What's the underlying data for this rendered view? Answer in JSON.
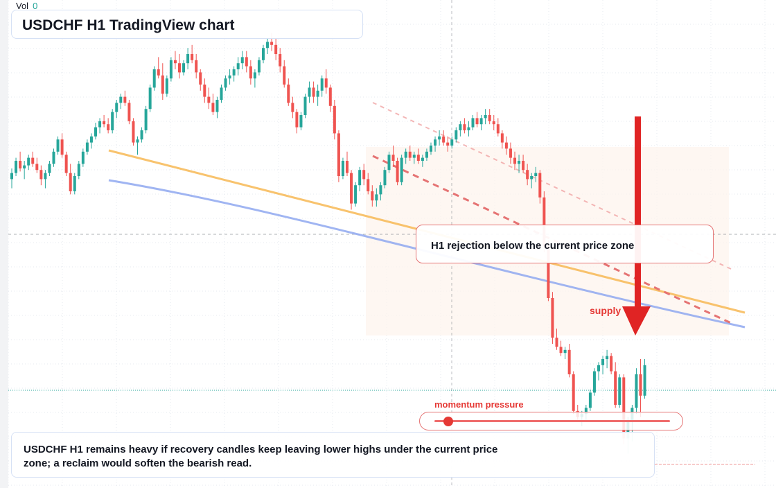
{
  "header": {
    "vol_label": "Vol",
    "vol_value": "0"
  },
  "title": "USDCHF H1 TradingView chart",
  "annotations": {
    "callout": "H1 rejection below the current price zone",
    "supply_label": "supply",
    "momentum_label": "momentum pressure",
    "momentum_level": 0.06
  },
  "note": "USDCHF H1 remains heavy if recovery candles keep leaving lower highs under the current price zone; a reclaim would soften the bearish read.",
  "colors": {
    "up": "#26a69a",
    "down": "#ef5350",
    "arrow": "#e02424",
    "ma_orange": "#f7b955",
    "ma_blue": "#8fa8f0",
    "trend_red": "#e57373",
    "grid": "#e6e9ef",
    "zone": "#fdf3ec"
  },
  "chart_data": {
    "type": "candlestick",
    "symbol": "USDCHF",
    "timeframe": "H1",
    "y_direction": "price (unlabeled axis)",
    "candles": [
      [
        0.68,
        0.75,
        0.62,
        0.72
      ],
      [
        0.72,
        0.82,
        0.7,
        0.8
      ],
      [
        0.8,
        0.86,
        0.73,
        0.75
      ],
      [
        0.75,
        0.8,
        0.68,
        0.77
      ],
      [
        0.77,
        0.84,
        0.74,
        0.82
      ],
      [
        0.82,
        0.86,
        0.76,
        0.78
      ],
      [
        0.78,
        0.82,
        0.72,
        0.74
      ],
      [
        0.74,
        0.77,
        0.64,
        0.68
      ],
      [
        0.68,
        0.74,
        0.62,
        0.72
      ],
      [
        0.72,
        0.8,
        0.7,
        0.78
      ],
      [
        0.78,
        0.88,
        0.76,
        0.86
      ],
      [
        0.86,
        0.96,
        0.84,
        0.94
      ],
      [
        0.94,
        0.98,
        0.82,
        0.84
      ],
      [
        0.84,
        0.86,
        0.7,
        0.72
      ],
      [
        0.72,
        0.78,
        0.58,
        0.6
      ],
      [
        0.6,
        0.72,
        0.58,
        0.7
      ],
      [
        0.7,
        0.8,
        0.68,
        0.78
      ],
      [
        0.78,
        0.88,
        0.76,
        0.86
      ],
      [
        0.86,
        0.94,
        0.84,
        0.92
      ],
      [
        0.92,
        0.98,
        0.88,
        0.96
      ],
      [
        0.96,
        1.05,
        0.94,
        1.02
      ],
      [
        1.02,
        1.08,
        0.98,
        1.06
      ],
      [
        1.06,
        1.1,
        1.02,
        1.04
      ],
      [
        1.04,
        1.08,
        0.98,
        1.0
      ],
      [
        1.0,
        1.14,
        0.98,
        1.12
      ],
      [
        1.12,
        1.2,
        1.08,
        1.18
      ],
      [
        1.18,
        1.24,
        1.14,
        1.22
      ],
      [
        1.22,
        1.26,
        1.16,
        1.18
      ],
      [
        1.18,
        1.2,
        1.04,
        1.06
      ],
      [
        1.06,
        1.08,
        0.9,
        0.92
      ],
      [
        0.92,
        0.96,
        0.84,
        0.94
      ],
      [
        0.94,
        1.02,
        0.92,
        1.0
      ],
      [
        1.0,
        1.16,
        0.98,
        1.14
      ],
      [
        1.14,
        1.3,
        1.12,
        1.28
      ],
      [
        1.28,
        1.42,
        1.26,
        1.4
      ],
      [
        1.4,
        1.48,
        1.34,
        1.36
      ],
      [
        1.36,
        1.44,
        1.2,
        1.24
      ],
      [
        1.24,
        1.36,
        1.22,
        1.34
      ],
      [
        1.34,
        1.48,
        1.32,
        1.46
      ],
      [
        1.46,
        1.52,
        1.4,
        1.44
      ],
      [
        1.44,
        1.5,
        1.34,
        1.38
      ],
      [
        1.38,
        1.46,
        1.36,
        1.44
      ],
      [
        1.44,
        1.54,
        1.4,
        1.5
      ],
      [
        1.5,
        1.56,
        1.44,
        1.46
      ],
      [
        1.46,
        1.5,
        1.34,
        1.38
      ],
      [
        1.38,
        1.4,
        1.26,
        1.3
      ],
      [
        1.3,
        1.34,
        1.18,
        1.22
      ],
      [
        1.22,
        1.28,
        1.14,
        1.18
      ],
      [
        1.18,
        1.24,
        1.1,
        1.12
      ],
      [
        1.12,
        1.22,
        1.08,
        1.2
      ],
      [
        1.2,
        1.3,
        1.18,
        1.28
      ],
      [
        1.28,
        1.36,
        1.26,
        1.34
      ],
      [
        1.34,
        1.4,
        1.3,
        1.36
      ],
      [
        1.36,
        1.42,
        1.32,
        1.4
      ],
      [
        1.4,
        1.48,
        1.36,
        1.44
      ],
      [
        1.44,
        1.52,
        1.4,
        1.48
      ],
      [
        1.48,
        1.52,
        1.38,
        1.42
      ],
      [
        1.42,
        1.46,
        1.3,
        1.34
      ],
      [
        1.34,
        1.4,
        1.28,
        1.38
      ],
      [
        1.38,
        1.48,
        1.36,
        1.46
      ],
      [
        1.46,
        1.56,
        1.44,
        1.54
      ],
      [
        1.54,
        1.6,
        1.5,
        1.58
      ],
      [
        1.58,
        1.64,
        1.52,
        1.56
      ],
      [
        1.56,
        1.6,
        1.46,
        1.5
      ],
      [
        1.5,
        1.54,
        1.38,
        1.42
      ],
      [
        1.42,
        1.46,
        1.28,
        1.3
      ],
      [
        1.3,
        1.34,
        1.16,
        1.18
      ],
      [
        1.18,
        1.22,
        1.08,
        1.12
      ],
      [
        1.12,
        1.14,
        0.98,
        1.02
      ],
      [
        1.02,
        1.12,
        1.0,
        1.1
      ],
      [
        1.1,
        1.24,
        1.08,
        1.22
      ],
      [
        1.22,
        1.32,
        1.18,
        1.28
      ],
      [
        1.28,
        1.32,
        1.18,
        1.22
      ],
      [
        1.22,
        1.3,
        1.16,
        1.26
      ],
      [
        1.26,
        1.36,
        1.22,
        1.34
      ],
      [
        1.34,
        1.4,
        1.24,
        1.28
      ],
      [
        1.28,
        1.3,
        1.12,
        1.16
      ],
      [
        1.16,
        1.2,
        0.94,
        0.98
      ],
      [
        0.98,
        1.0,
        0.66,
        0.7
      ],
      [
        0.7,
        0.82,
        0.68,
        0.8
      ],
      [
        0.8,
        0.86,
        0.7,
        0.72
      ],
      [
        0.72,
        0.74,
        0.48,
        0.52
      ],
      [
        0.52,
        0.66,
        0.5,
        0.64
      ],
      [
        0.64,
        0.76,
        0.6,
        0.74
      ],
      [
        0.74,
        0.78,
        0.64,
        0.68
      ],
      [
        0.68,
        0.72,
        0.58,
        0.6
      ],
      [
        0.6,
        0.64,
        0.5,
        0.54
      ],
      [
        0.54,
        0.62,
        0.5,
        0.58
      ],
      [
        0.58,
        0.66,
        0.54,
        0.64
      ],
      [
        0.64,
        0.76,
        0.62,
        0.74
      ],
      [
        0.74,
        0.86,
        0.72,
        0.84
      ],
      [
        0.84,
        0.9,
        0.76,
        0.8
      ],
      [
        0.8,
        0.82,
        0.64,
        0.66
      ],
      [
        0.66,
        0.84,
        0.64,
        0.82
      ],
      [
        0.82,
        0.88,
        0.78,
        0.86
      ],
      [
        0.86,
        0.9,
        0.8,
        0.82
      ],
      [
        0.82,
        0.86,
        0.78,
        0.84
      ],
      [
        0.84,
        0.88,
        0.78,
        0.8
      ],
      [
        0.8,
        0.84,
        0.76,
        0.82
      ],
      [
        0.82,
        0.88,
        0.8,
        0.86
      ],
      [
        0.86,
        0.92,
        0.84,
        0.9
      ],
      [
        0.9,
        0.96,
        0.86,
        0.94
      ],
      [
        0.94,
        1.0,
        0.9,
        0.96
      ],
      [
        0.96,
        1.0,
        0.9,
        0.92
      ],
      [
        0.92,
        0.96,
        0.86,
        0.9
      ],
      [
        0.9,
        0.96,
        0.88,
        0.94
      ],
      [
        0.94,
        1.02,
        0.92,
        1.0
      ],
      [
        1.0,
        1.06,
        0.96,
        1.04
      ],
      [
        1.04,
        1.08,
        0.98,
        1.0
      ],
      [
        1.0,
        1.06,
        0.96,
        1.02
      ],
      [
        1.02,
        1.1,
        1.0,
        1.08
      ],
      [
        1.08,
        1.12,
        1.02,
        1.04
      ],
      [
        1.04,
        1.1,
        1.0,
        1.08
      ],
      [
        1.08,
        1.14,
        1.04,
        1.1
      ],
      [
        1.1,
        1.14,
        1.04,
        1.06
      ],
      [
        1.06,
        1.1,
        1.0,
        1.04
      ],
      [
        1.04,
        1.08,
        0.96,
        0.98
      ],
      [
        0.98,
        1.0,
        0.88,
        0.92
      ],
      [
        0.92,
        0.96,
        0.84,
        0.88
      ],
      [
        0.88,
        0.92,
        0.78,
        0.82
      ],
      [
        0.82,
        0.86,
        0.74,
        0.78
      ],
      [
        0.78,
        0.84,
        0.72,
        0.8
      ],
      [
        0.8,
        0.84,
        0.72,
        0.74
      ],
      [
        0.74,
        0.78,
        0.64,
        0.68
      ],
      [
        0.68,
        0.72,
        0.62,
        0.7
      ],
      [
        0.7,
        0.76,
        0.66,
        0.72
      ],
      [
        0.72,
        0.74,
        0.52,
        0.56
      ],
      [
        0.56,
        0.6,
        0.2,
        0.24
      ],
      [
        0.24,
        0.28,
        -0.12,
        -0.1
      ],
      [
        -0.1,
        -0.06,
        -0.4,
        -0.36
      ],
      [
        -0.36,
        -0.3,
        -0.44,
        -0.42
      ],
      [
        -0.42,
        -0.38,
        -0.48,
        -0.46
      ],
      [
        -0.46,
        -0.42,
        -0.5,
        -0.44
      ],
      [
        -0.44,
        -0.4,
        -0.62,
        -0.6
      ],
      [
        -0.6,
        -0.58,
        -0.86,
        -0.84
      ],
      [
        -0.84,
        -0.8,
        -0.9,
        -0.88
      ],
      [
        -0.88,
        -0.84,
        -0.94,
        -0.86
      ],
      [
        -0.86,
        -0.8,
        -0.9,
        -0.82
      ],
      [
        -0.82,
        -0.7,
        -0.84,
        -0.72
      ],
      [
        -0.72,
        -0.56,
        -0.74,
        -0.58
      ],
      [
        -0.58,
        -0.52,
        -0.64,
        -0.54
      ],
      [
        -0.54,
        -0.48,
        -0.6,
        -0.5
      ],
      [
        -0.5,
        -0.44,
        -0.56,
        -0.48
      ],
      [
        -0.48,
        -0.46,
        -0.6,
        -0.58
      ],
      [
        -0.58,
        -0.52,
        -0.82,
        -0.8
      ],
      [
        -0.8,
        -0.6,
        -0.82,
        -0.62
      ],
      [
        -0.62,
        -0.6,
        -1.06,
        -1.02
      ],
      [
        -1.02,
        -0.88,
        -1.12,
        -0.9
      ],
      [
        -0.9,
        -0.8,
        -1.04,
        -0.82
      ],
      [
        -0.82,
        -0.56,
        -0.86,
        -0.6
      ],
      [
        -0.6,
        -0.5,
        -0.88,
        -0.74
      ],
      [
        -0.74,
        -0.5,
        -0.76,
        -0.54
      ]
    ]
  }
}
